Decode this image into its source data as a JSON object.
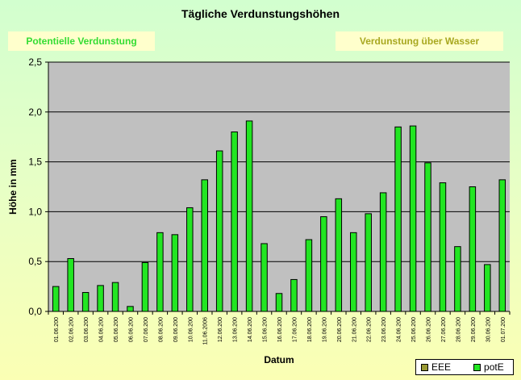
{
  "chart_data": {
    "type": "bar",
    "title": "Tägliche Verdunstungshöhen",
    "xlabel": "Datum",
    "ylabel": "Höhe in mm",
    "ylim": [
      0,
      2.5
    ],
    "yticks": [
      "0,0",
      "0,5",
      "1,0",
      "1,5",
      "2,0",
      "2,5"
    ],
    "grid": true,
    "legend_placement": "bottom-right",
    "annotations": {
      "left": "Potentielle Verdunstung",
      "right": "Verdunstung über Wasser"
    },
    "categories": [
      "01.06.200",
      "02.06.200",
      "03.06.200",
      "04.06.200",
      "05.06.200",
      "06.06.200",
      "07.06.200",
      "08.06.200",
      "09.06.200",
      "10.06.200",
      "11.06.2006",
      "12.06.200",
      "13.06.200",
      "14.06.200",
      "15.06.200",
      "16.06.200",
      "17.06.200",
      "18.06.200",
      "19.06.200",
      "20.06.200",
      "21.06.200",
      "22.06.200",
      "23.06.200",
      "24.06.200",
      "25.06.200",
      "26.06.200",
      "27.06.200",
      "28.06.200",
      "29.06.200",
      "30.06.200",
      "01.07.200"
    ],
    "series": [
      {
        "name": "EEE",
        "color": "#999933",
        "values": [
          null,
          null,
          null,
          null,
          null,
          null,
          null,
          null,
          null,
          null,
          null,
          null,
          null,
          null,
          null,
          null,
          null,
          null,
          null,
          null,
          null,
          null,
          null,
          null,
          null,
          null,
          null,
          null,
          null,
          null,
          null
        ]
      },
      {
        "name": "potE",
        "color": "#22e622",
        "values": [
          0.25,
          0.53,
          0.19,
          0.26,
          0.29,
          0.05,
          0.49,
          0.79,
          0.77,
          1.04,
          1.32,
          1.61,
          1.8,
          1.91,
          0.68,
          0.18,
          0.32,
          0.72,
          0.95,
          1.13,
          0.79,
          0.98,
          1.19,
          1.85,
          1.86,
          1.49,
          1.29,
          0.65,
          1.25,
          0.47,
          1.32
        ]
      }
    ]
  },
  "colors": {
    "plot_background": "#c0c0c0",
    "bar_fill": "#22e622",
    "bar_outline": "#000000"
  }
}
